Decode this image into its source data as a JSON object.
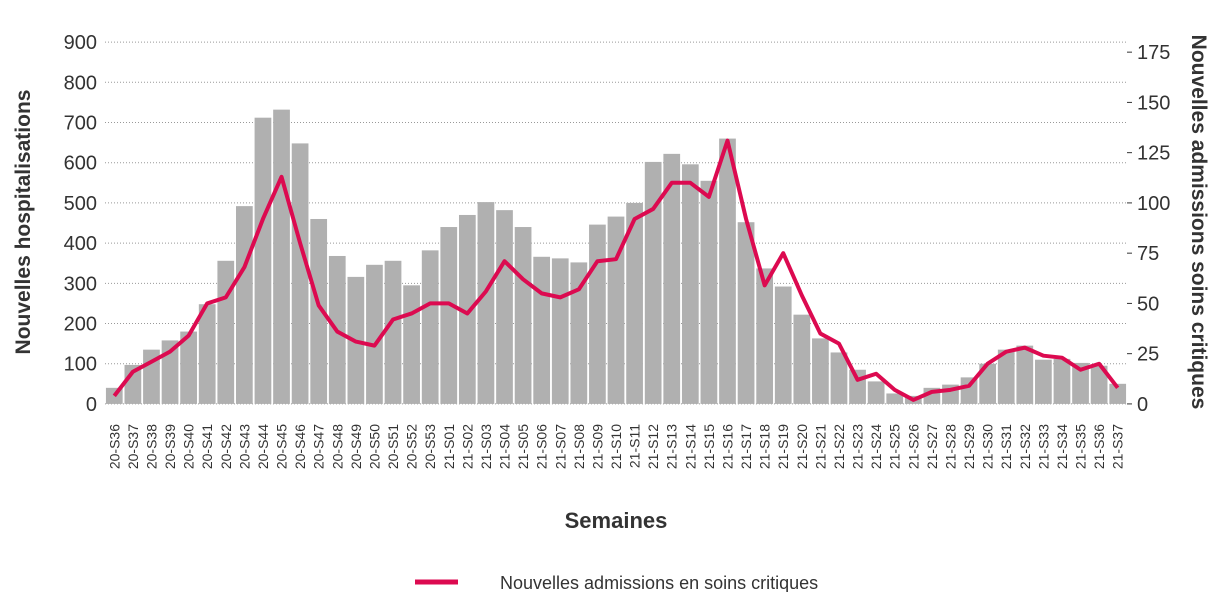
{
  "chart_data": {
    "type": "bar_line",
    "y_label": "Nouvelles hospitalisations",
    "y2_label": "Nouvelles admissions soins critiques",
    "x_label": "Semaines",
    "categories": [
      "20-S36",
      "20-S37",
      "20-S38",
      "20-S39",
      "20-S40",
      "20-S41",
      "20-S42",
      "20-S43",
      "20-S44",
      "20-S45",
      "20-S46",
      "20-S47",
      "20-S48",
      "20-S49",
      "20-S50",
      "20-S51",
      "20-S52",
      "20-S53",
      "21-S01",
      "21-S02",
      "21-S03",
      "21-S04",
      "21-S05",
      "21-S06",
      "21-S07",
      "21-S08",
      "21-S09",
      "21-S10",
      "21-S11",
      "21-S12",
      "21-S13",
      "21-S14",
      "21-S15",
      "21-S16",
      "21-S17",
      "21-S18",
      "21-S19",
      "21-S20",
      "21-S21",
      "21-S22",
      "21-S23",
      "21-S24",
      "21-S25",
      "21-S26",
      "21-S27",
      "21-S28",
      "21-S29",
      "21-S30",
      "21-S31",
      "21-S32",
      "21-S33",
      "21-S34",
      "21-S35",
      "21-S36",
      "21-S37"
    ],
    "series": [
      {
        "name": "Nouvelles hospitalisations",
        "type": "bar",
        "color": "#b0b0b0",
        "values": [
          40,
          97,
          135,
          158,
          180,
          248,
          356,
          492,
          712,
          732,
          648,
          460,
          368,
          316,
          346,
          356,
          295,
          382,
          440,
          470,
          502,
          482,
          440,
          366,
          362,
          352,
          446,
          466,
          500,
          602,
          622,
          596,
          555,
          660,
          452,
          337,
          292,
          222,
          163,
          128,
          85,
          56,
          26,
          20,
          40,
          48,
          66,
          100,
          135,
          145,
          110,
          112,
          102,
          95,
          50
        ]
      },
      {
        "name": "Nouvelles admissions en soins critiques",
        "type": "line",
        "axis": "y2",
        "color": "#dc0a50",
        "values": [
          4,
          16,
          21,
          26,
          34,
          50,
          53,
          68,
          92,
          113,
          80,
          49,
          36,
          31,
          29,
          42,
          45,
          50,
          50,
          45,
          56,
          71,
          62,
          55,
          53,
          57,
          71,
          72,
          92,
          97,
          110,
          110,
          103,
          131,
          92,
          59,
          75,
          54,
          35,
          30,
          12,
          15,
          7,
          2,
          6,
          7,
          9,
          20,
          26,
          28,
          24,
          23,
          17,
          20,
          8
        ]
      }
    ],
    "ylim": [
      -40,
      950
    ],
    "yticks": [
      0,
      100,
      200,
      300,
      400,
      500,
      600,
      700,
      800,
      900
    ],
    "y2lim": [
      -8,
      190
    ],
    "y2ticks": [
      0,
      25,
      50,
      75,
      100,
      125,
      150,
      175
    ],
    "grid": true
  }
}
